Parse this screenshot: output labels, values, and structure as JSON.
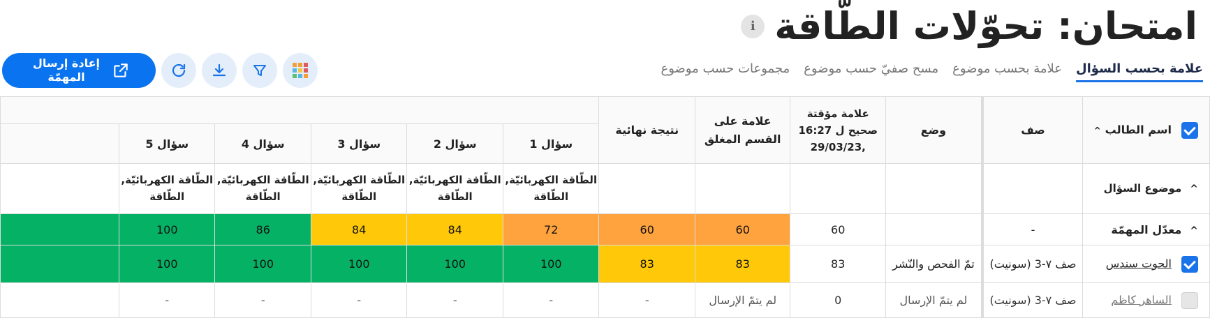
{
  "page": {
    "title": "امتحان: تحوّلات الطّاقة",
    "info_icon": "i"
  },
  "tabs": [
    {
      "label": "علامة بحسب السؤال",
      "active": true
    },
    {
      "label": "علامة بحسب موضوع",
      "active": false
    },
    {
      "label": "مسح صفيّ حسب موضوع",
      "active": false
    },
    {
      "label": "مجموعات حسب موضوع",
      "active": false
    }
  ],
  "toolbar": {
    "resend_label": "إعادة إرسال المهمّة",
    "icons": [
      "external-link-icon",
      "refresh-icon",
      "download-icon",
      "filter-icon",
      "grid-apps-icon"
    ],
    "accent": "#0a73f0"
  },
  "table": {
    "headers": {
      "student": "اسم الطالب",
      "class": "صف",
      "status": "وضع",
      "temp_grade": "علامة مؤقتة صحيح ل 16:27 ,29/03/23",
      "closed_grade": "علامة على القسم المغلق",
      "final": "نتيجة نهائية",
      "q1": "سؤال 1",
      "q2": "سؤال 2",
      "q3": "سؤال 3",
      "q4": "سؤال 4",
      "q5": "سؤال 5"
    },
    "topic_row": {
      "label": "موضوع السؤال",
      "q1": "الطّاقة الكهربائيّة, الطّاقة",
      "q2": "الطّاقة الكهربائيّة, الطّاقة",
      "q3": "الطّاقة الكهربائيّة, الطّاقة",
      "q4": "الطّاقة الكهربائيّة, الطّاقة",
      "q5": "الطّاقة الكهربائيّة, الطّاقة"
    },
    "avg_row": {
      "label": "معدّل المهمّة",
      "class": "-",
      "status": "",
      "temp": "60",
      "closed": "60",
      "final": "60",
      "q1": "72",
      "q2": "84",
      "q3": "84",
      "q4": "86",
      "q5": "100"
    },
    "students": [
      {
        "name": "الحوت سندس",
        "class": "صف ٧-3 (سونيت)",
        "status": "تمّ الفحص والنّشر",
        "temp": "83",
        "closed": "83",
        "final": "83",
        "q1": "100",
        "q2": "100",
        "q3": "100",
        "q4": "100",
        "q5": "100"
      },
      {
        "name": "الساهر كاظم",
        "class": "صف ٧-3 (سونيت)",
        "status": "لم يتمّ الإرسال",
        "temp": "0",
        "closed": "لم يتمّ الإرسال",
        "final": "-",
        "q1": "-",
        "q2": "-",
        "q3": "-",
        "q4": "-",
        "q5": "-"
      }
    ],
    "colors": {
      "green": "#05b265",
      "yellow": "#ffc90a",
      "orange": "#ffa33f"
    }
  }
}
